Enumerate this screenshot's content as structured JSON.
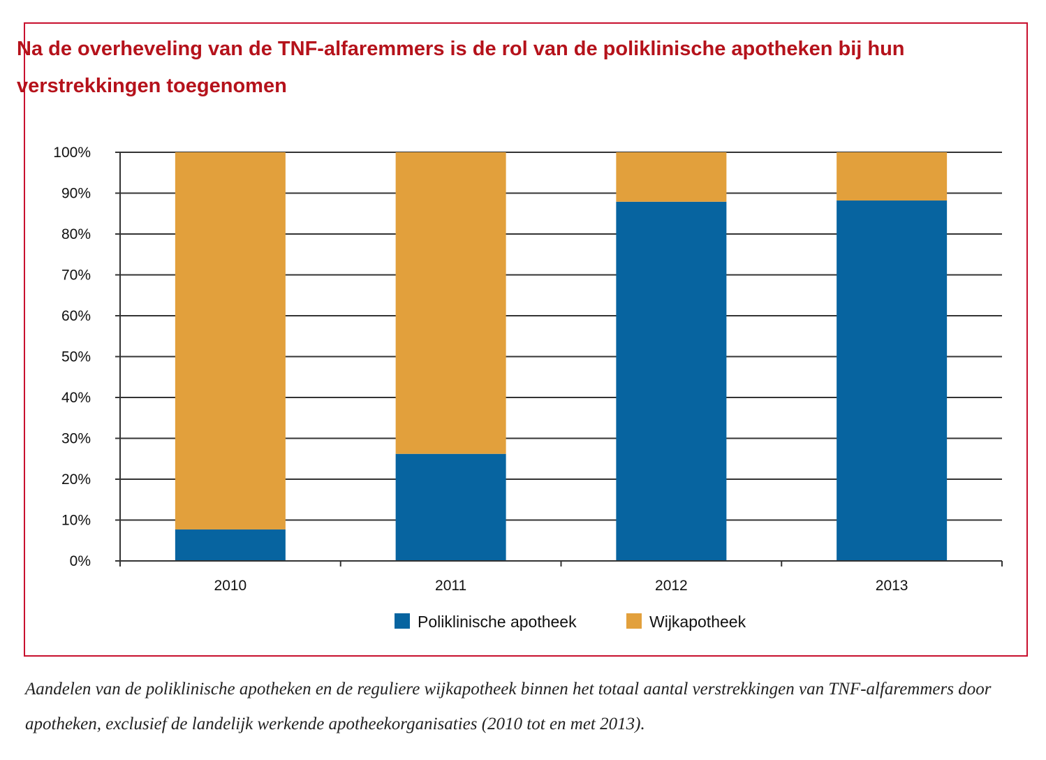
{
  "title": "Na de overheveling van de TNF-alfaremmers is de rol van de poliklinische apotheken bij hun verstrekkingen toegenomen",
  "caption": "Aandelen van de poliklinische apotheken en de reguliere wijkapotheek binnen het totaal aantal verstrekkingen van TNF-alfaremmers door apotheken, exclusief de landelijk werkende apotheekorganisaties (2010 tot en met 2013).",
  "colors": {
    "frame": "#c8102e",
    "title": "#b5121b",
    "poliklinisch": "#0764a0",
    "wijk": "#e2a03c"
  },
  "chart_data": {
    "type": "bar",
    "stacked": true,
    "title": "Na de overheveling van de TNF-alfaremmers is de rol van de poliklinische apotheken bij hun verstrekkingen toegenomen",
    "xlabel": "",
    "ylabel": "",
    "categories": [
      "2010",
      "2011",
      "2012",
      "2013"
    ],
    "series": [
      {
        "name": "Poliklinische apotheek",
        "color": "#0764a0",
        "values": [
          7.7,
          26.2,
          87.9,
          88.2
        ]
      },
      {
        "name": "Wijkapotheek",
        "color": "#e2a03c",
        "values": [
          92.3,
          73.8,
          12.1,
          11.8
        ]
      }
    ],
    "ylim": [
      0,
      100
    ],
    "yticks": [
      0,
      10,
      20,
      30,
      40,
      50,
      60,
      70,
      80,
      90,
      100
    ],
    "ytick_labels": [
      "0%",
      "10%",
      "20%",
      "30%",
      "40%",
      "50%",
      "60%",
      "70%",
      "80%",
      "90%",
      "100%"
    ],
    "grid": true,
    "legend": {
      "position": "bottom-center",
      "entries": [
        "Poliklinische apotheek",
        "Wijkapotheek"
      ]
    }
  }
}
